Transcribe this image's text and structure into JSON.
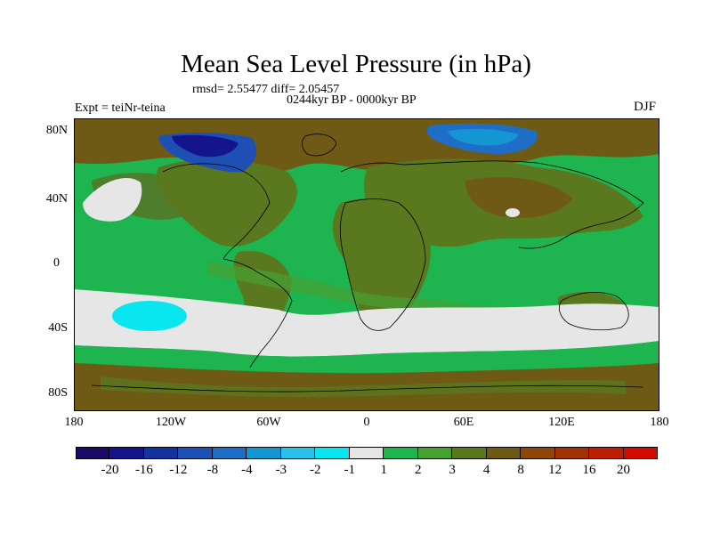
{
  "header": {
    "title": "Mean Sea Level Pressure (in hPa)",
    "stats": "rmsd= 2.55477 diff= 2.05457",
    "period": "0244kyr BP - 0000kyr BP",
    "experiment": "Expt = teiNr-teina",
    "season": "DJF"
  },
  "axes": {
    "y_labels": [
      "80N",
      "40N",
      "0",
      "40S",
      "80S"
    ],
    "x_labels": [
      "180",
      "120W",
      "60W",
      "0",
      "60E",
      "120E",
      "180"
    ]
  },
  "colorbar": {
    "labels": [
      "-20",
      "-16",
      "-12",
      "-8",
      "-4",
      "-3",
      "-2",
      "-1",
      "1",
      "2",
      "3",
      "4",
      "8",
      "12",
      "16",
      "20"
    ],
    "colors": [
      "#1a0a66",
      "#14148c",
      "#1432a0",
      "#1e50b4",
      "#1e6ec8",
      "#1496d2",
      "#28c3e6",
      "#0ae6f0",
      "#e6e6e6",
      "#1eb450",
      "#46a032",
      "#5a781e",
      "#6e5a14",
      "#8c460a",
      "#a03205",
      "#be1e05",
      "#d20a00"
    ]
  },
  "map": {
    "colors": {
      "ocean_green": "#1eb450",
      "land_olive": "#5a781e",
      "brown": "#6e5a14",
      "light_grey": "#e6e6e6",
      "cyan": "#0ae6f0",
      "blue": "#1e50b4",
      "dark_blue": "#14148c",
      "mid_blue": "#1e6ec8",
      "light_blue": "#1496d2",
      "dark_green": "#46a032"
    }
  }
}
